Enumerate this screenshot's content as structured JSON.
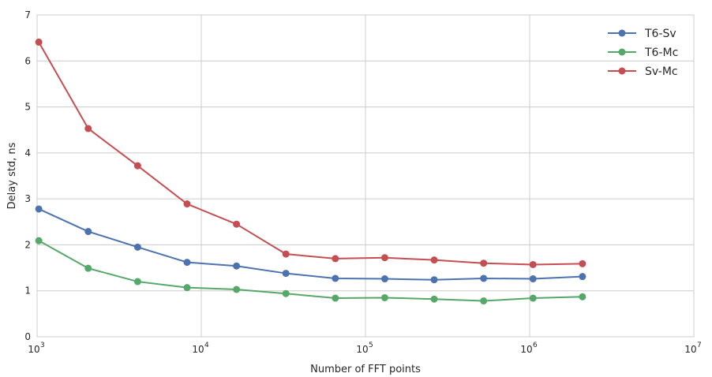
{
  "chart_data": {
    "type": "line",
    "title": "",
    "xlabel": "Number of FFT points",
    "ylabel": "Delay std, ns",
    "xscale": "log",
    "xlim": [
      1000,
      10000000
    ],
    "ylim": [
      0,
      7
    ],
    "x_ticks": [
      {
        "value": 1000,
        "base": "10",
        "exp": "3"
      },
      {
        "value": 10000,
        "base": "10",
        "exp": "4"
      },
      {
        "value": 100000,
        "base": "10",
        "exp": "5"
      },
      {
        "value": 1000000,
        "base": "10",
        "exp": "6"
      },
      {
        "value": 10000000,
        "base": "10",
        "exp": "7"
      }
    ],
    "y_ticks": [
      0,
      1,
      2,
      3,
      4,
      5,
      6,
      7
    ],
    "grid": true,
    "legend_position": "top-right",
    "x": [
      1024,
      2048,
      4096,
      8192,
      16384,
      32768,
      65536,
      131072,
      262144,
      524288,
      1048576,
      2097152
    ],
    "series": [
      {
        "name": "T6-Sv",
        "color": "#4c72b0",
        "values": [
          2.78,
          2.29,
          1.95,
          1.62,
          1.54,
          1.38,
          1.27,
          1.26,
          1.24,
          1.27,
          1.26,
          1.31
        ]
      },
      {
        "name": "T6-Mc",
        "color": "#55a868",
        "values": [
          2.09,
          1.49,
          1.2,
          1.07,
          1.03,
          0.94,
          0.84,
          0.85,
          0.82,
          0.78,
          0.84,
          0.87
        ]
      },
      {
        "name": "Sv-Mc",
        "color": "#c44e52",
        "values": [
          6.41,
          4.53,
          3.72,
          2.89,
          2.45,
          1.8,
          1.7,
          1.72,
          1.67,
          1.6,
          1.57,
          1.59
        ]
      }
    ]
  },
  "style": {
    "grid_color": "#cccccc",
    "frame_color": "#cccccc",
    "background": "#ffffff"
  }
}
